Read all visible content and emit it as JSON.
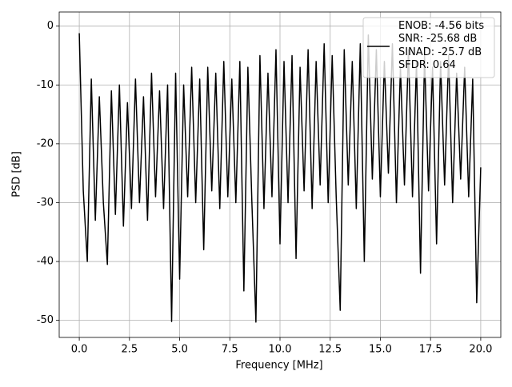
{
  "chart_data": {
    "type": "line",
    "xlabel": "Frequency [MHz]",
    "ylabel": "PSD [dB]",
    "x": [
      0,
      0.2,
      0.4,
      0.6,
      0.8,
      1,
      1.2,
      1.4,
      1.6,
      1.8,
      2,
      2.2,
      2.4,
      2.6,
      2.8,
      3,
      3.2,
      3.4,
      3.6,
      3.8,
      4,
      4.2,
      4.4,
      4.6,
      4.8,
      5,
      5.2,
      5.4,
      5.6,
      5.8,
      6,
      6.2,
      6.4,
      6.6,
      6.8,
      7,
      7.2,
      7.4,
      7.6,
      7.8,
      8,
      8.2,
      8.4,
      8.6,
      8.8,
      9,
      9.2,
      9.4,
      9.6,
      9.8,
      10,
      10.2,
      10.4,
      10.6,
      10.8,
      11,
      11.2,
      11.4,
      11.6,
      11.8,
      12,
      12.2,
      12.4,
      12.6,
      12.8,
      13,
      13.2,
      13.4,
      13.6,
      13.8,
      14,
      14.2,
      14.4,
      14.6,
      14.8,
      15,
      15.2,
      15.4,
      15.6,
      15.8,
      16,
      16.2,
      16.4,
      16.6,
      16.8,
      17,
      17.2,
      17.4,
      17.6,
      17.8,
      18,
      18.2,
      18.4,
      18.6,
      18.8,
      19,
      19.2,
      19.4,
      19.6,
      19.8,
      20
    ],
    "series": [
      {
        "name": "ENOB: -4.56 bits\nSNR: -25.68 dB\nSINAD: -25.7 dB\nSFDR: 0.64",
        "color": "#000000",
        "values": [
          -1.2,
          -28,
          -40,
          -9,
          -33,
          -12,
          -30,
          -40.5,
          -11,
          -32,
          -10,
          -34,
          -13,
          -31,
          -9,
          -30,
          -12,
          -33,
          -8,
          -29,
          -11,
          -31,
          -10,
          -50.2,
          -8,
          -43,
          -10,
          -29,
          -7,
          -30,
          -9,
          -38,
          -7,
          -28,
          -8,
          -31,
          -6,
          -29,
          -9,
          -30,
          -6,
          -45,
          -7,
          -30,
          -50.3,
          -5,
          -31,
          -8,
          -29,
          -4,
          -37,
          -6,
          -30,
          -5,
          -39.5,
          -7,
          -28,
          -4,
          -31,
          -6,
          -27,
          -3,
          -30,
          -5,
          -29,
          -48.3,
          -4,
          -27,
          -6,
          -31,
          -3,
          -40,
          -1.5,
          -26,
          -4,
          -29,
          -6,
          -25,
          -3,
          -30,
          -7,
          -27,
          -4,
          -29,
          -6,
          -42,
          -5,
          -28,
          -7,
          -37,
          -6,
          -27,
          -5,
          -30,
          -8,
          -26,
          -7,
          -29,
          -9,
          -47,
          -24
        ]
      }
    ],
    "xlim": [
      -1.0,
      21.0
    ],
    "ylim": [
      -52.9,
      2.4
    ],
    "xticks": [
      {
        "value": 0,
        "label": "0.0"
      },
      {
        "value": 2.5,
        "label": "2.5"
      },
      {
        "value": 5,
        "label": "5.0"
      },
      {
        "value": 7.5,
        "label": "7.5"
      },
      {
        "value": 10,
        "label": "10.0"
      },
      {
        "value": 12.5,
        "label": "12.5"
      },
      {
        "value": 15,
        "label": "15.0"
      },
      {
        "value": 17.5,
        "label": "17.5"
      },
      {
        "value": 20,
        "label": "20.0"
      }
    ],
    "yticks": [
      -50,
      -40,
      -30,
      -20,
      -10,
      0
    ],
    "grid": true,
    "legend": "upper right"
  }
}
